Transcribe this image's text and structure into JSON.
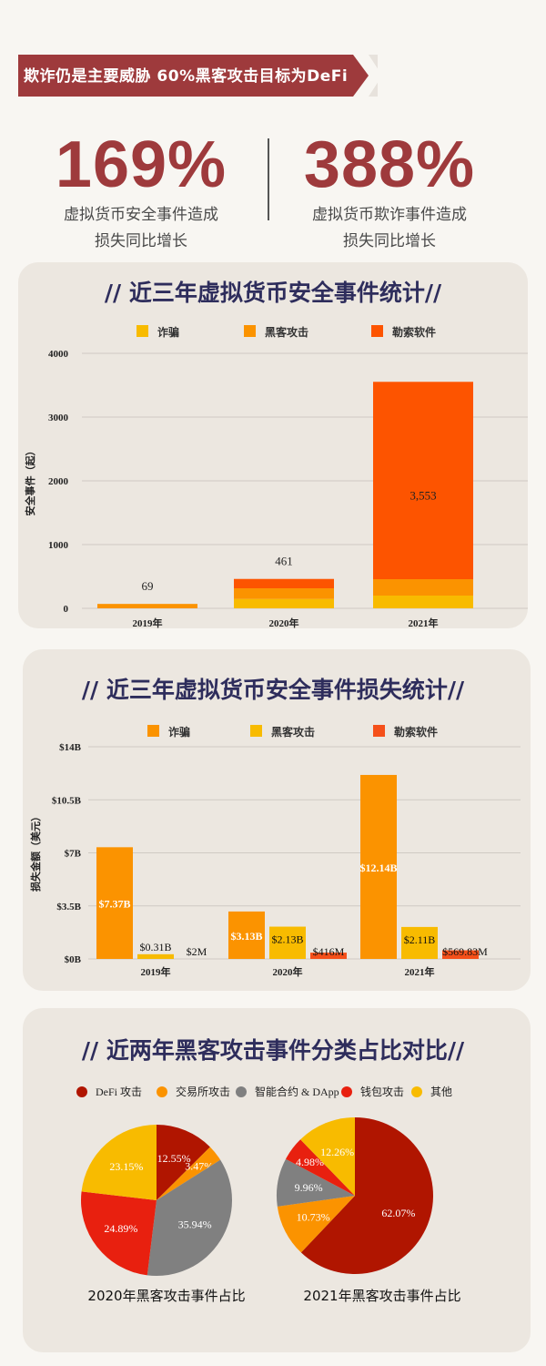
{
  "banner": {
    "text": "欺诈仍是主要威胁  60%黑客攻击目标为DeFi"
  },
  "stats": [
    {
      "value": "169%",
      "label_line1": "虚拟货币安全事件造成",
      "label_line2": "损失同比增长"
    },
    {
      "value": "388%",
      "label_line1": "虚拟货币欺诈事件造成",
      "label_line2": "损失同比增长"
    }
  ],
  "chart_data": [
    {
      "type": "bar",
      "stacked": true,
      "title": "// 近三年虚拟货币安全事件统计//",
      "ylabel": "安全事件（起）",
      "xlabel": "",
      "ylim": [
        0,
        4000
      ],
      "yticks": [
        "0",
        "1000",
        "2000",
        "3000",
        "4000"
      ],
      "ytick_values": [
        0,
        1000,
        2000,
        3000,
        4000
      ],
      "categories": [
        "2019年",
        "2020年",
        "2021年"
      ],
      "series": [
        {
          "name": "诈骗",
          "color": "#f8bb00",
          "values": [
            0,
            147,
            200
          ]
        },
        {
          "name": "黑客攻击",
          "color": "#fb9300",
          "values": [
            69,
            167,
            257
          ]
        },
        {
          "name": "勒索软件",
          "color": "#fd5400",
          "values": [
            0,
            147,
            3096
          ]
        }
      ],
      "totals": [
        69,
        461,
        3553
      ],
      "total_labels": [
        "69",
        "461",
        "3,553"
      ],
      "legend": "top",
      "grid": true
    },
    {
      "type": "bar",
      "stacked": false,
      "title": "// 近三年虚拟货币安全事件损失统计//",
      "ylabel": "损失金额（美元）",
      "xlabel": "",
      "ylim": [
        0,
        14
      ],
      "yticks": [
        "$0B",
        "$3.5B",
        "$7B",
        "$10.5B",
        "$14B"
      ],
      "ytick_values": [
        0,
        3.5,
        7,
        10.5,
        14
      ],
      "categories": [
        "2019年",
        "2020年",
        "2021年"
      ],
      "series": [
        {
          "name": "诈骗",
          "color": "#fb9300",
          "values": [
            7.37,
            3.13,
            12.14
          ],
          "labels": [
            "$7.37B",
            "$3.13B",
            "$12.14B"
          ]
        },
        {
          "name": "黑客攻击",
          "color": "#f8bb00",
          "values": [
            0.31,
            2.13,
            2.11
          ],
          "labels": [
            "$0.31B",
            "$2.13B",
            "$2.11B"
          ]
        },
        {
          "name": "勒索软件",
          "color": "#f5501a",
          "values": [
            0.002,
            0.416,
            0.56983
          ],
          "labels": [
            "$2M",
            "$416M",
            "$569.83M"
          ]
        }
      ],
      "legend": "top",
      "grid": true
    },
    {
      "type": "pie",
      "title": "// 近两年黑客攻击事件分类占比对比//",
      "legend_entries": [
        {
          "name": "DeFi 攻击",
          "color": "#b01500"
        },
        {
          "name": "交易所攻击",
          "color": "#fb9300"
        },
        {
          "name": "智能合约 & DApp",
          "color": "#808080"
        },
        {
          "name": "钱包攻击",
          "color": "#e8200f"
        },
        {
          "name": "其他",
          "color": "#f8bb00"
        }
      ],
      "pies": [
        {
          "caption": "2020年黑客攻击事件占比",
          "values": [
            12.55,
            3.47,
            35.94,
            24.89,
            23.15
          ],
          "labels": [
            "12.55%",
            "3.47%",
            "35.94%",
            "24.89%",
            "23.15%"
          ]
        },
        {
          "caption": "2021年黑客攻击事件占比",
          "values": [
            62.07,
            10.73,
            9.96,
            4.98,
            12.26
          ],
          "labels": [
            "62.07%",
            "10.73%",
            "9.96%",
            "4.98%",
            "12.26%"
          ]
        }
      ],
      "legend": "top"
    }
  ],
  "colors": {
    "brand_red": "#9e3a3c",
    "title_navy": "#2e2d5c",
    "card_bg": "#ece7e0"
  }
}
